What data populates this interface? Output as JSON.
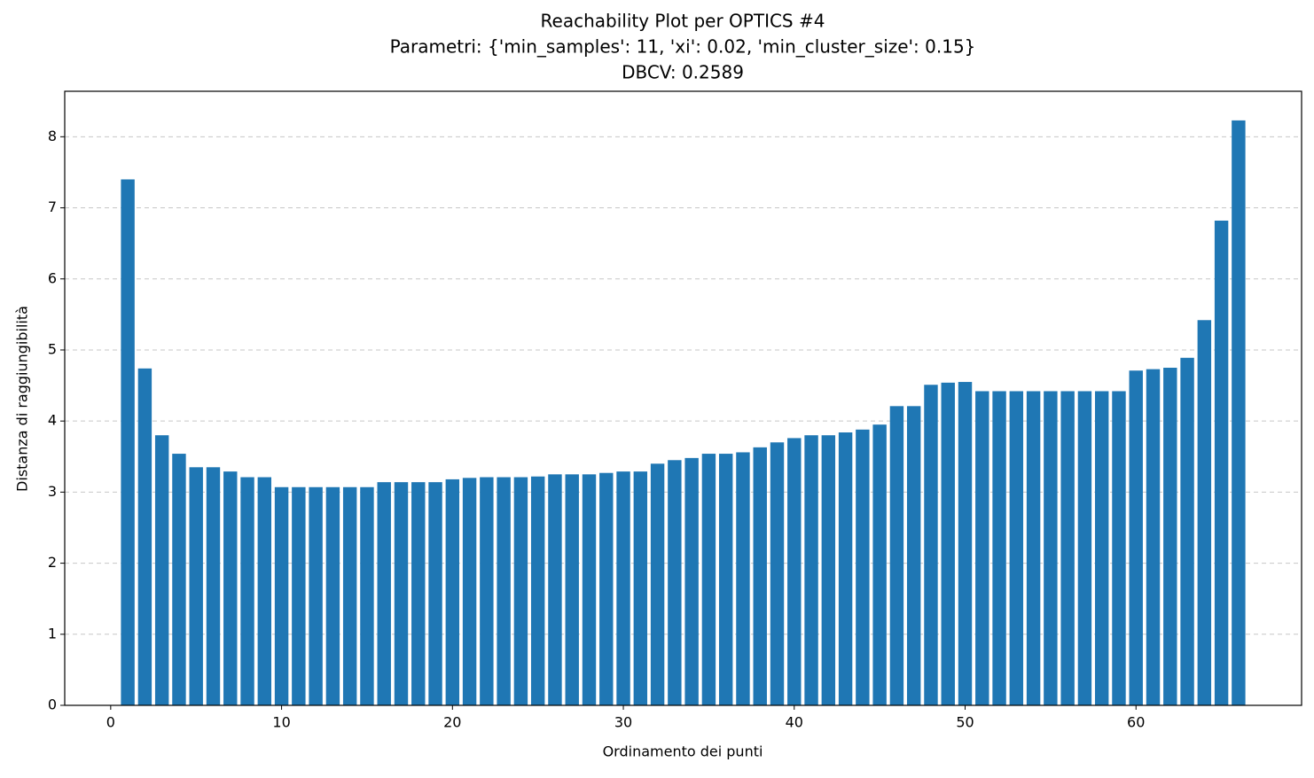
{
  "chart_data": {
    "type": "bar",
    "title": "Reachability Plot per OPTICS #4",
    "subtitle": [
      "Parametri: {'min_samples': 11, 'xi': 0.02, 'min_cluster_size': 0.15}",
      "DBCV: 0.2589"
    ],
    "x_label": "Ordinamento dei punti",
    "y_label": "Distanza di raggiungibilità",
    "x": [
      1,
      2,
      3,
      4,
      5,
      6,
      7,
      8,
      9,
      10,
      11,
      12,
      13,
      14,
      15,
      16,
      17,
      18,
      19,
      20,
      21,
      22,
      23,
      24,
      25,
      26,
      27,
      28,
      29,
      30,
      31,
      32,
      33,
      34,
      35,
      36,
      37,
      38,
      39,
      40,
      41,
      42,
      43,
      44,
      45,
      46,
      47,
      48,
      49,
      50,
      51,
      52,
      53,
      54,
      55,
      56,
      57,
      58,
      59,
      60,
      61,
      62,
      63,
      64,
      65,
      66
    ],
    "values": [
      7.4,
      4.74,
      3.8,
      3.54,
      3.35,
      3.35,
      3.29,
      3.21,
      3.21,
      3.07,
      3.07,
      3.07,
      3.07,
      3.07,
      3.07,
      3.14,
      3.14,
      3.14,
      3.14,
      3.18,
      3.2,
      3.21,
      3.21,
      3.21,
      3.22,
      3.25,
      3.25,
      3.25,
      3.27,
      3.29,
      3.29,
      3.4,
      3.45,
      3.48,
      3.54,
      3.54,
      3.56,
      3.63,
      3.7,
      3.76,
      3.8,
      3.8,
      3.84,
      3.88,
      3.95,
      4.21,
      4.21,
      4.51,
      4.54,
      4.55,
      4.42,
      4.42,
      4.42,
      4.42,
      4.42,
      4.42,
      4.42,
      4.42,
      4.42,
      4.71,
      4.73,
      4.75,
      4.89,
      5.42,
      6.82,
      8.23
    ],
    "color": "#1f77b4",
    "xlim": [
      -2.69,
      69.69
    ],
    "xticks": [
      0,
      10,
      20,
      30,
      40,
      50,
      60
    ],
    "ylim": [
      0,
      8.64
    ],
    "yticks": [
      0,
      1,
      2,
      3,
      4,
      5,
      6,
      7,
      8
    ],
    "grid": "y"
  }
}
